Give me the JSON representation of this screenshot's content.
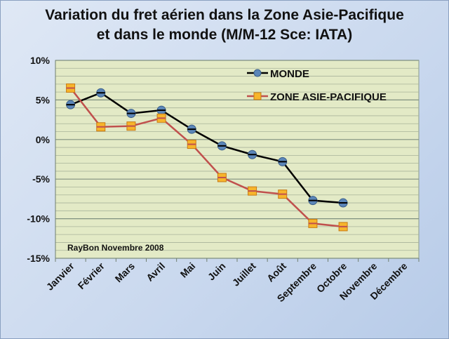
{
  "chart_data": {
    "type": "line",
    "title": "Variation du fret aérien dans la Zone Asie-Pacifique",
    "title_line2": "et dans le monde (M/M-12 Sce: IATA)",
    "categories": [
      "Janvier",
      "Février",
      "Mars",
      "Avril",
      "Mai",
      "Juin",
      "Juillet",
      "Août",
      "Septembre",
      "Octobre",
      "Novembre",
      "Décembre"
    ],
    "ylim": [
      -15,
      10
    ],
    "yticks": [
      10,
      5,
      0,
      -5,
      -10,
      -15
    ],
    "ytick_labels": [
      "10%",
      "5%",
      "0%",
      "-5%",
      "-10%",
      "-15%"
    ],
    "grid": true,
    "legend_position": "top-right",
    "annotation": "RayBon Novembre 2008",
    "series": [
      {
        "name": "MONDE",
        "color": "#000000",
        "marker_color": "#5b86b8",
        "marker": "circle",
        "values": [
          4.4,
          5.9,
          3.3,
          3.7,
          1.3,
          -0.8,
          -1.9,
          -2.8,
          -7.7,
          -8.0,
          null,
          null
        ]
      },
      {
        "name": "ZONE ASIE-PACIFIQUE",
        "color": "#c0504d",
        "marker_color": "#f7b52b",
        "marker": "square",
        "values": [
          6.5,
          1.6,
          1.7,
          2.7,
          -0.6,
          -4.8,
          -6.5,
          -6.9,
          -10.6,
          -11.0,
          null,
          null
        ]
      }
    ]
  }
}
